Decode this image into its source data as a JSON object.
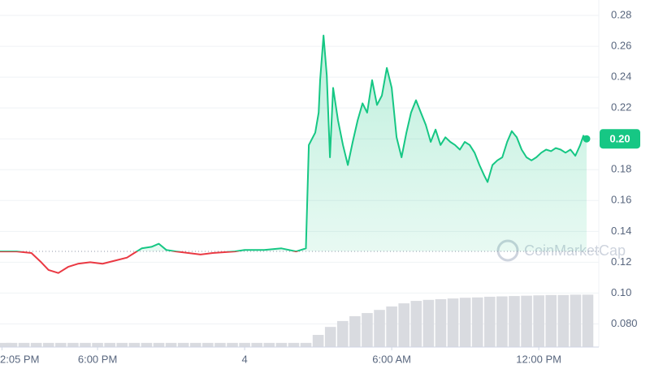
{
  "chart_data": {
    "type": "line",
    "x": [
      -9.98,
      -9.3,
      -8.7,
      -8.3,
      -8.0,
      -7.6,
      -7.2,
      -6.8,
      -6.3,
      -5.8,
      -5.3,
      -4.8,
      -4.5,
      -4.2,
      -3.8,
      -3.5,
      -3.2,
      -2.8,
      -2.3,
      -1.8,
      -1.3,
      -0.4,
      0,
      0.8,
      1.5,
      2.1,
      2.5,
      2.62,
      2.88,
      3.02,
      3.08,
      3.22,
      3.35,
      3.48,
      3.61,
      3.81,
      4.01,
      4.21,
      4.41,
      4.61,
      4.81,
      5.0,
      5.2,
      5.4,
      5.6,
      5.8,
      6.0,
      6.2,
      6.4,
      6.6,
      6.79,
      6.99,
      7.19,
      7.39,
      7.59,
      7.79,
      7.99,
      8.19,
      8.39,
      8.58,
      8.78,
      8.98,
      9.18,
      9.38,
      9.58,
      9.78,
      9.91,
      10.11,
      10.31,
      10.51,
      10.71,
      10.9,
      11.1,
      11.3,
      11.5,
      11.7,
      11.9,
      12.1,
      12.3,
      12.5,
      12.69,
      12.89,
      13.09,
      13.29,
      13.49,
      13.69,
      13.82,
      13.95
    ],
    "values": [
      0.127,
      0.127,
      0.126,
      0.12,
      0.115,
      0.113,
      0.117,
      0.119,
      0.12,
      0.119,
      0.121,
      0.123,
      0.126,
      0.129,
      0.13,
      0.132,
      0.128,
      0.127,
      0.126,
      0.125,
      0.126,
      0.127,
      0.128,
      0.128,
      0.129,
      0.127,
      0.129,
      0.196,
      0.204,
      0.217,
      0.238,
      0.267,
      0.241,
      0.188,
      0.233,
      0.212,
      0.196,
      0.183,
      0.198,
      0.212,
      0.223,
      0.217,
      0.238,
      0.222,
      0.228,
      0.246,
      0.233,
      0.201,
      0.188,
      0.204,
      0.217,
      0.225,
      0.217,
      0.209,
      0.198,
      0.206,
      0.196,
      0.201,
      0.198,
      0.196,
      0.193,
      0.198,
      0.196,
      0.191,
      0.183,
      0.176,
      0.172,
      0.183,
      0.186,
      0.188,
      0.198,
      0.205,
      0.201,
      0.193,
      0.188,
      0.186,
      0.188,
      0.191,
      0.193,
      0.192,
      0.194,
      0.193,
      0.191,
      0.193,
      0.189,
      0.196,
      0.202,
      0.2
    ],
    "up_color": "#16c784",
    "down_color": "#ea3943",
    "baseline": 0.127,
    "xlim": [
      -9.98,
      14.15
    ],
    "ylim": [
      0.065,
      0.29
    ],
    "xticks": [
      {
        "value": -9.9,
        "label": "2:05 PM"
      },
      {
        "value": -6,
        "label": "6:00 PM"
      },
      {
        "value": 0,
        "label": "4"
      },
      {
        "value": 6,
        "label": "6:00 AM"
      },
      {
        "value": 12,
        "label": "12:00 PM"
      }
    ],
    "yticks": [
      {
        "value": 0.08,
        "label": "0.080"
      },
      {
        "value": 0.1,
        "label": "0.10"
      },
      0.12,
      0.14,
      0.16,
      0.18,
      {
        "value": 0.2,
        "label": "0.20"
      },
      0.22,
      0.24,
      0.26,
      0.28
    ],
    "grid": true,
    "price_tag": {
      "value": 0.2,
      "label": "0.20"
    },
    "volume": {
      "x": [
        -10,
        -9.5,
        -9,
        -8.5,
        -8,
        -7.5,
        -7,
        -6.5,
        -6,
        -5.5,
        -5,
        -4.5,
        -4,
        -3.5,
        -3,
        -2.5,
        -2,
        -1.5,
        -1,
        -0.5,
        0,
        0.5,
        1,
        1.5,
        2,
        2.5,
        3,
        3.5,
        4,
        4.5,
        5,
        5.5,
        6,
        6.5,
        7,
        7.5,
        8,
        8.5,
        9,
        9.5,
        10,
        10.5,
        11,
        11.5,
        12,
        12.5,
        13,
        13.5,
        14
      ],
      "values": [
        1.2,
        1.2,
        1.2,
        1.2,
        1.2,
        1.2,
        1.2,
        1.2,
        1.2,
        1.2,
        1.2,
        1.2,
        1.2,
        1.2,
        1.2,
        1.2,
        1.2,
        1.2,
        1.2,
        1.2,
        1.2,
        1.2,
        1.2,
        1.2,
        1.2,
        1.2,
        3.5,
        5.8,
        7.5,
        8.9,
        9.8,
        10.7,
        11.7,
        12.6,
        13.3,
        13.6,
        13.8,
        14.0,
        14.2,
        14.3,
        14.5,
        14.6,
        14.7,
        14.8,
        14.9,
        15.0,
        15.0,
        15.1,
        15.1
      ],
      "ylim": [
        0,
        100
      ],
      "color": "#d9dbe0"
    },
    "watermark": "CoinMarketCap"
  }
}
